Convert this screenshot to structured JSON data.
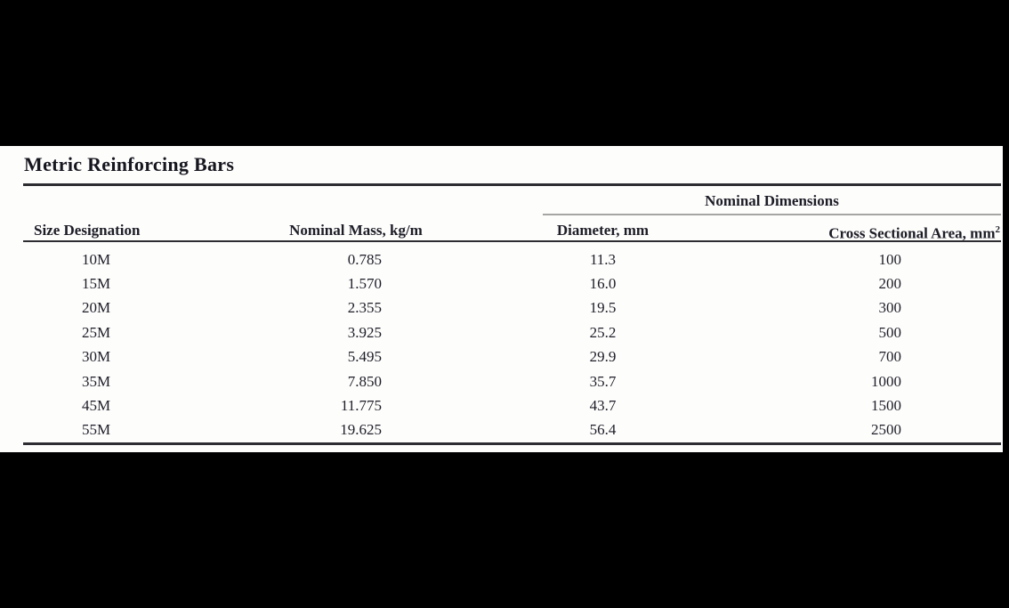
{
  "page": {
    "background_color": "#000000",
    "panel_color": "#fdfdfc",
    "ink_color": "#1d1d27",
    "gray_rule_color": "#a5a5a5"
  },
  "table": {
    "title": "Metric Reinforcing Bars",
    "group_header": "Nominal Dimensions",
    "columns": {
      "size": "Size Designation",
      "mass": "Nominal Mass, kg/m",
      "diameter": "Diameter, mm",
      "area_base": "Cross Sectional Area, mm",
      "area_sup": "2"
    },
    "rows": [
      {
        "size": "10M",
        "mass": "0.785",
        "diameter": "11.3",
        "area": "100"
      },
      {
        "size": "15M",
        "mass": "1.570",
        "diameter": "16.0",
        "area": "200"
      },
      {
        "size": "20M",
        "mass": "2.355",
        "diameter": "19.5",
        "area": "300"
      },
      {
        "size": "25M",
        "mass": "3.925",
        "diameter": "25.2",
        "area": "500"
      },
      {
        "size": "30M",
        "mass": "5.495",
        "diameter": "29.9",
        "area": "700"
      },
      {
        "size": "35M",
        "mass": "7.850",
        "diameter": "35.7",
        "area": "1000"
      },
      {
        "size": "45M",
        "mass": "11.775",
        "diameter": "43.7",
        "area": "1500"
      },
      {
        "size": "55M",
        "mass": "19.625",
        "diameter": "56.4",
        "area": "2500"
      }
    ]
  }
}
